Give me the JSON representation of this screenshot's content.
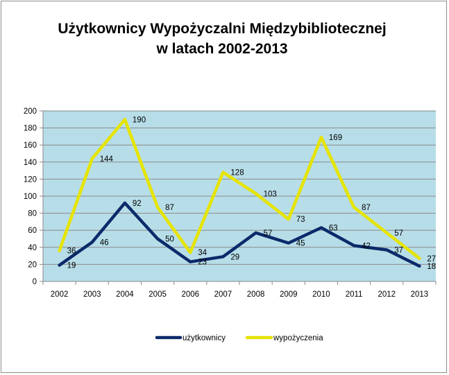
{
  "chart_data": {
    "type": "line",
    "title": "Użytkownicy Wypożyczalni Międzybibliotecznej",
    "subtitle": "w latach 2002-2013",
    "categories": [
      "2002",
      "2003",
      "2004",
      "2005",
      "2006",
      "2007",
      "2008",
      "2009",
      "2010",
      "2011",
      "2012",
      "2013"
    ],
    "series": [
      {
        "name": "użytkownicy",
        "color": "#0b2a6a",
        "values": [
          19,
          46,
          92,
          50,
          23,
          29,
          57,
          45,
          63,
          42,
          37,
          18
        ]
      },
      {
        "name": "wypożyczenia",
        "color": "#e5e400",
        "values": [
          36,
          144,
          190,
          87,
          34,
          128,
          103,
          73,
          169,
          87,
          57,
          27
        ]
      }
    ],
    "ylim": [
      0,
      200
    ],
    "yticks": [
      0,
      20,
      40,
      60,
      80,
      100,
      120,
      140,
      160,
      180,
      200
    ],
    "plot_background": "#b7dde8",
    "grid": true,
    "legend": "bottom"
  }
}
